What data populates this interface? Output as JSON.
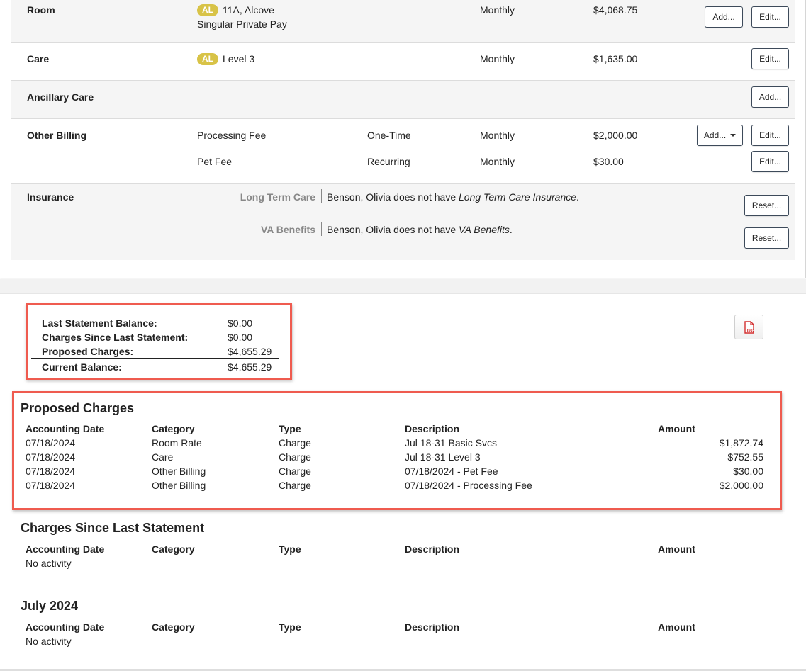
{
  "billing": {
    "room": {
      "label": "Room",
      "badge": "AL",
      "unit": "11A, Alcove",
      "rate_type": "Singular Private Pay",
      "frequency": "Monthly",
      "amount": "$4,068.75",
      "add_label": "Add...",
      "edit_label": "Edit..."
    },
    "care": {
      "label": "Care",
      "badge": "AL",
      "level": "Level 3",
      "frequency": "Monthly",
      "amount": "$1,635.00",
      "edit_label": "Edit..."
    },
    "ancillary": {
      "label": "Ancillary Care",
      "add_label": "Add..."
    },
    "other": {
      "label": "Other Billing",
      "add_label": "Add...",
      "items": [
        {
          "name": "Processing Fee",
          "type": "One-Time",
          "frequency": "Monthly",
          "amount": "$2,000.00",
          "edit_label": "Edit..."
        },
        {
          "name": "Pet Fee",
          "type": "Recurring",
          "frequency": "Monthly",
          "amount": "$30.00",
          "edit_label": "Edit..."
        }
      ]
    },
    "insurance": {
      "label": "Insurance",
      "items": [
        {
          "key": "Long Term Care",
          "text": "Benson, Olivia does not have ",
          "emph": "Long Term Care Insurance",
          "suffix": ".",
          "reset_label": "Reset..."
        },
        {
          "key": "VA Benefits",
          "text": "Benson, Olivia does not have ",
          "emph": "VA Benefits",
          "suffix": ".",
          "reset_label": "Reset..."
        }
      ]
    }
  },
  "summary": {
    "rows": [
      {
        "label": "Last Statement Balance:",
        "value": "$0.00"
      },
      {
        "label": "Charges Since Last Statement:",
        "value": "$0.00"
      },
      {
        "label": "Proposed Charges:",
        "value": "$4,655.29"
      },
      {
        "label": "Current Balance:",
        "value": "$4,655.29"
      }
    ],
    "pdf_icon": "pdf-file-icon"
  },
  "columns": {
    "date": "Accounting Date",
    "category": "Category",
    "type": "Type",
    "description": "Description",
    "amount": "Amount"
  },
  "proposed": {
    "title": "Proposed Charges",
    "rows": [
      {
        "date": "07/18/2024",
        "category": "Room Rate",
        "type": "Charge",
        "description": "Jul 18-31 Basic Svcs",
        "amount": "$1,872.74"
      },
      {
        "date": "07/18/2024",
        "category": "Care",
        "type": "Charge",
        "description": "Jul 18-31 Level 3",
        "amount": "$752.55"
      },
      {
        "date": "07/18/2024",
        "category": "Other Billing",
        "type": "Charge",
        "description": "07/18/2024 - Pet Fee",
        "amount": "$30.00"
      },
      {
        "date": "07/18/2024",
        "category": "Other Billing",
        "type": "Charge",
        "description": "07/18/2024 - Processing Fee",
        "amount": "$2,000.00"
      }
    ]
  },
  "since_last": {
    "title": "Charges Since Last Statement",
    "empty": "No activity"
  },
  "july": {
    "title": "July 2024",
    "empty": "No activity"
  },
  "colors": {
    "highlight_border": "#ef5b4f",
    "badge": "#d8c347",
    "row_shade": "#f5f5f5"
  }
}
